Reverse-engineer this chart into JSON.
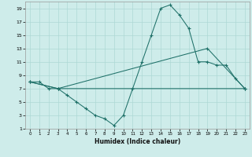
{
  "xlabel": "Humidex (Indice chaleur)",
  "background_color": "#ceecea",
  "grid_color": "#aed8d5",
  "line_color": "#1e7068",
  "xlim": [
    -0.5,
    23.5
  ],
  "ylim": [
    1,
    20
  ],
  "xticks": [
    0,
    1,
    2,
    3,
    4,
    5,
    6,
    7,
    8,
    9,
    10,
    11,
    12,
    13,
    14,
    15,
    16,
    17,
    18,
    19,
    20,
    21,
    22,
    23
  ],
  "yticks": [
    1,
    3,
    5,
    7,
    9,
    11,
    13,
    15,
    17,
    19
  ],
  "line1_x": [
    0,
    1,
    2,
    3,
    4,
    5,
    6,
    7,
    8,
    9,
    10,
    11,
    12,
    13,
    14,
    15,
    16,
    17,
    18,
    19,
    20,
    21,
    22,
    23
  ],
  "line1_y": [
    8,
    8,
    7,
    7,
    6,
    5,
    4,
    3,
    2.5,
    1.5,
    3,
    7,
    11,
    15,
    19,
    19.5,
    18,
    16,
    11,
    11,
    10.5,
    10.5,
    8.5,
    7
  ],
  "line2_x": [
    0,
    3,
    19,
    23
  ],
  "line2_y": [
    8,
    7,
    13,
    7
  ],
  "line3_x": [
    0,
    3,
    23
  ],
  "line3_y": [
    8,
    7,
    7
  ]
}
